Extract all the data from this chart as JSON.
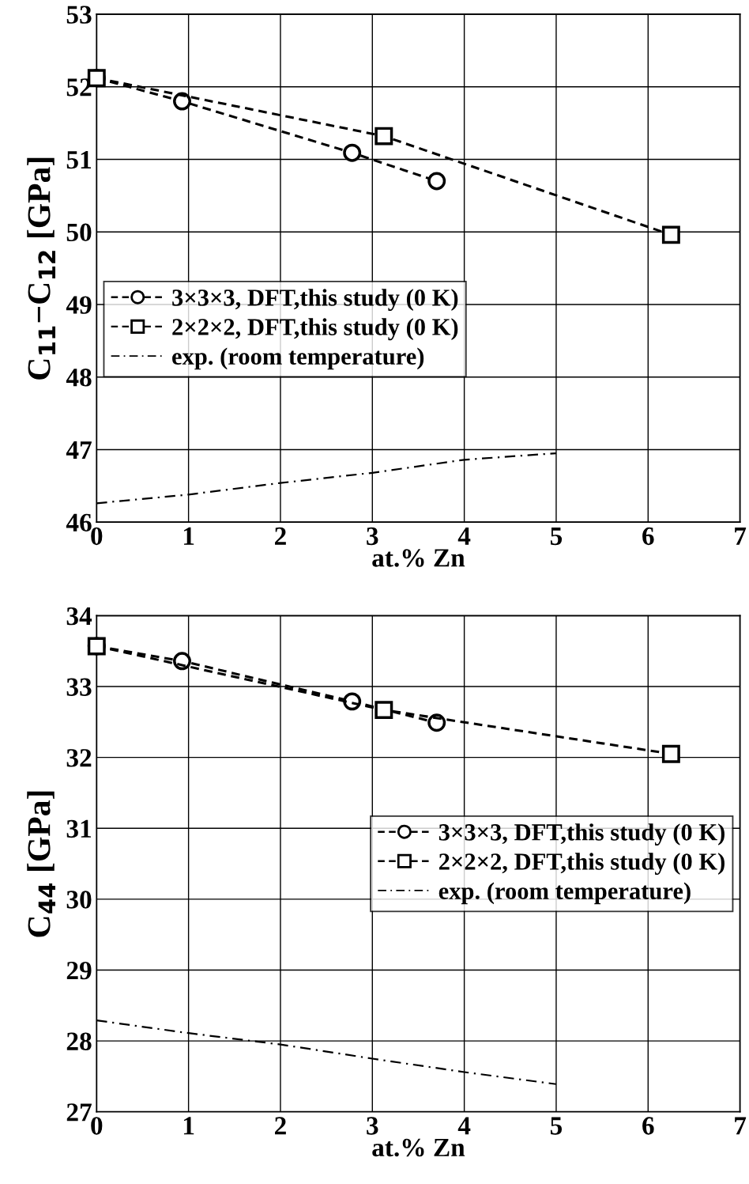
{
  "chart_data": [
    {
      "type": "line",
      "xlabel": "at.% Zn",
      "ylabel": "C$_{11}$−C$_{12}$ [GPa]",
      "xlim": [
        0,
        7
      ],
      "xticks": [
        0,
        1,
        2,
        3,
        4,
        5,
        6,
        7
      ],
      "ylim": [
        46,
        53
      ],
      "yticks": [
        46,
        47,
        48,
        49,
        50,
        51,
        52,
        53
      ],
      "grid": true,
      "legend": "center left",
      "series": [
        {
          "name": "3×3×3, DFT,this study (0 K)",
          "color": "#000000",
          "marker": "circle",
          "line_style": "dashed",
          "x": [
            0,
            0.93,
            2.78,
            3.7
          ],
          "values": [
            52.12,
            51.8,
            51.09,
            50.7
          ]
        },
        {
          "name": "2×2×2, DFT,this study (0 K)",
          "color": "#000000",
          "marker": "square",
          "line_style": "dashed",
          "x": [
            0,
            3.125,
            6.25
          ],
          "values": [
            52.12,
            51.32,
            49.96
          ]
        },
        {
          "name": "exp. (room temperature)",
          "color": "#000000",
          "marker": "none",
          "line_style": "dashdot",
          "x": [
            0,
            1,
            2,
            3,
            4,
            5
          ],
          "values": [
            46.26,
            46.38,
            46.54,
            46.68,
            46.86,
            46.95
          ]
        }
      ]
    },
    {
      "type": "line",
      "xlabel": "at.% Zn",
      "ylabel": "C$_{44}$ [GPa]",
      "xlim": [
        0,
        7
      ],
      "xticks": [
        0,
        1,
        2,
        3,
        4,
        5,
        6,
        7
      ],
      "ylim": [
        27,
        34
      ],
      "yticks": [
        27,
        28,
        29,
        30,
        31,
        32,
        33,
        34
      ],
      "grid": true,
      "legend": "center right",
      "series": [
        {
          "name": "3×3×3, DFT,this study (0 K)",
          "color": "#000000",
          "marker": "circle",
          "line_style": "dashed",
          "x": [
            0,
            0.93,
            2.78,
            3.7
          ],
          "values": [
            33.57,
            33.36,
            32.79,
            32.49
          ]
        },
        {
          "name": "2×2×2, DFT,this study (0 K)",
          "color": "#000000",
          "marker": "square",
          "line_style": "dashed",
          "x": [
            0,
            3.125,
            6.25
          ],
          "values": [
            33.57,
            32.67,
            32.05
          ]
        },
        {
          "name": "exp. (room temperature)",
          "color": "#000000",
          "marker": "none",
          "line_style": "dashdot",
          "x": [
            0,
            1,
            2,
            3,
            4,
            5
          ],
          "values": [
            28.29,
            28.11,
            27.95,
            27.75,
            27.56,
            27.39
          ]
        }
      ]
    }
  ]
}
